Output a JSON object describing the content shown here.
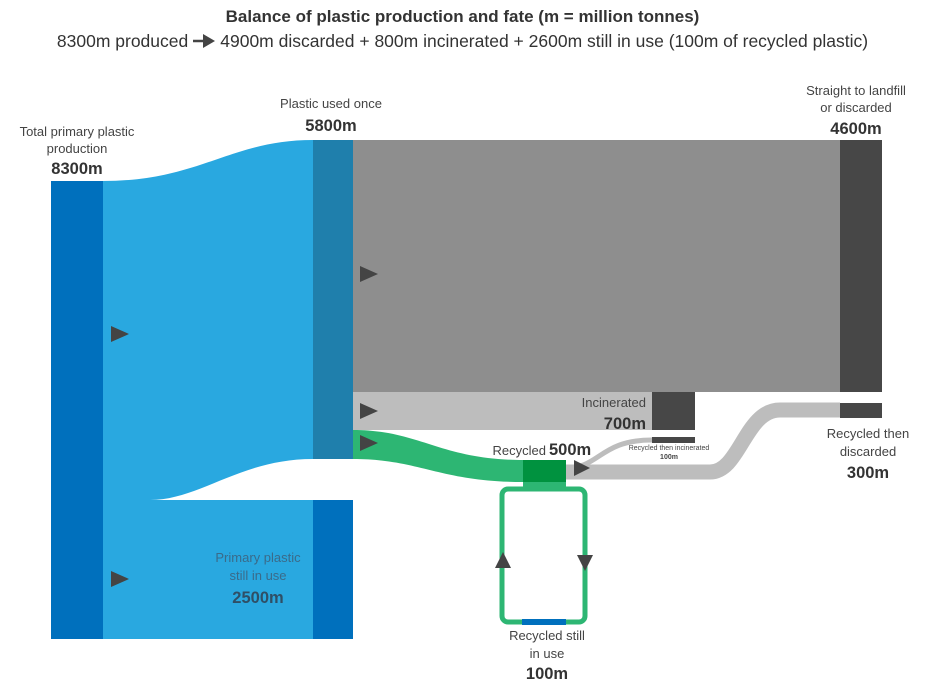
{
  "title": "Balance of plastic production and fate (m = million tonnes)",
  "subtitle": {
    "left": "8300m produced",
    "right": "4900m discarded + 800m incinerated + 2600m still in use (100m of recycled plastic)"
  },
  "nodes": {
    "total": {
      "label_line1": "Total primary plastic",
      "label_line2": "production",
      "value": "8300m"
    },
    "used_once": {
      "label": "Plastic used once",
      "value": "5800m"
    },
    "landfill": {
      "label_line1": "Straight to landfill",
      "label_line2": "or discarded",
      "value": "4600m"
    },
    "incinerated": {
      "label": "Incinerated",
      "value": "700m"
    },
    "recycled": {
      "label": "Recycled",
      "value": "500m"
    },
    "recycled_incinerated": {
      "label": "Recycled then incinerated",
      "value": "100m"
    },
    "recycled_discarded": {
      "label_line1": "Recycled then",
      "label_line2": "discarded",
      "value": "300m"
    },
    "primary_in_use": {
      "label_line1": "Primary plastic",
      "label_line2": "still in use",
      "value": "2500m"
    },
    "recycled_in_use": {
      "label_line1": "Recycled still",
      "label_line2": "in use",
      "value": "100m"
    }
  },
  "colors": {
    "dark_blue": "#0070bd",
    "light_blue": "#29a8e0",
    "mid_blue": "#1f7fac",
    "grey_flow": "#8e8e8e",
    "light_grey_flow": "#bdbdbd",
    "dark_grey_node": "#474747",
    "green_flow": "#2db673",
    "dark_green_node": "#00923f",
    "arrow": "#444444"
  }
}
